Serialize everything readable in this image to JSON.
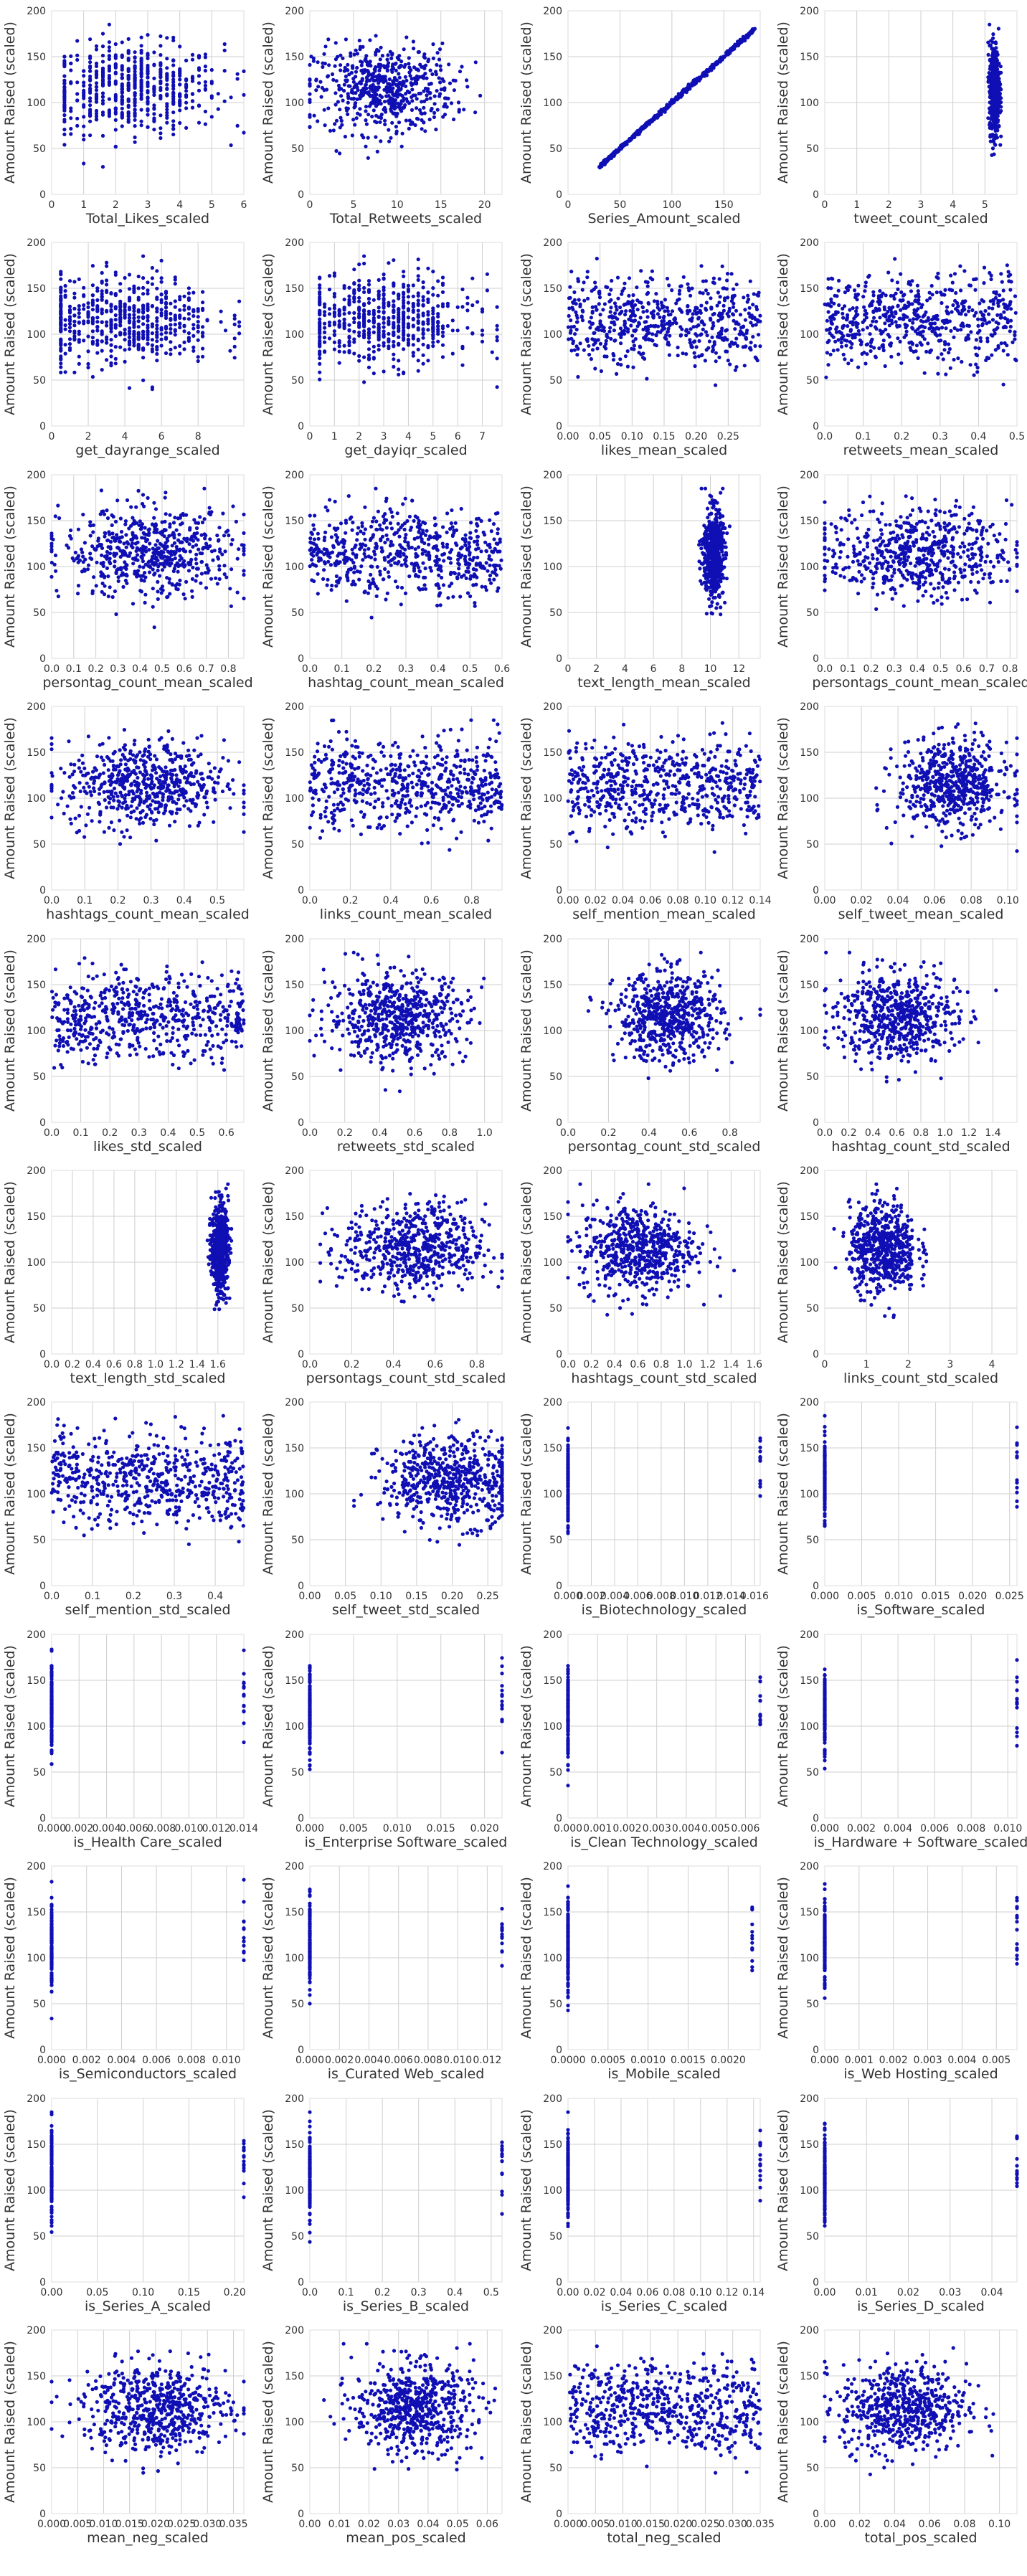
{
  "figure": {
    "colors": {
      "point": "#0f0fb4",
      "grid": "#cfcfcf",
      "axis_text": "#333333",
      "spine": "#dddddd"
    },
    "ylabel": "Amount Raised (scaled)",
    "y_ticks": [
      0,
      50,
      100,
      150,
      200
    ]
  },
  "chart_data": [
    {
      "type": "scatter",
      "xlabel": "Total_Likes_scaled",
      "xlim": [
        0,
        6
      ],
      "x_ticks": [
        0,
        1,
        2,
        3,
        4,
        5,
        6
      ],
      "dist": "discrete",
      "cx": 2.5,
      "sx": 1.4,
      "lo": 0.4,
      "hi": 5.9,
      "step": 0.2,
      "ylim": [
        0,
        200
      ]
    },
    {
      "type": "scatter",
      "xlabel": "Total_Retweets_scaled",
      "xlim": [
        0,
        22
      ],
      "x_ticks": [
        0,
        5,
        10,
        15,
        20
      ],
      "dist": "normal",
      "cx": 8.5,
      "sx": 4,
      "lo": 0,
      "hi": 22,
      "ylim": [
        0,
        200
      ]
    },
    {
      "type": "scatter",
      "xlabel": "Series_Amount_scaled",
      "xlim": [
        0,
        185
      ],
      "x_ticks": [
        0,
        50,
        100,
        150
      ],
      "dist": "diagonal",
      "lo": 30,
      "hi": 180,
      "ylim": [
        0,
        200
      ]
    },
    {
      "type": "scatter",
      "xlabel": "tweet_count_scaled",
      "xlim": [
        0,
        6
      ],
      "x_ticks": [
        0,
        1,
        2,
        3,
        4,
        5
      ],
      "dist": "normal",
      "cx": 5.3,
      "sx": 0.08,
      "lo": 5.1,
      "hi": 5.5,
      "ylim": [
        0,
        200
      ]
    },
    {
      "type": "scatter",
      "xlabel": "get_dayrange_scaled",
      "xlim": [
        0,
        10.5
      ],
      "x_ticks": [
        0,
        2,
        4,
        6,
        8
      ],
      "dist": "discrete",
      "cx": 4,
      "sx": 2.5,
      "lo": 0.5,
      "hi": 10.3,
      "step": 0.25,
      "ylim": [
        0,
        200
      ]
    },
    {
      "type": "scatter",
      "xlabel": "get_dayiqr_scaled",
      "xlim": [
        0,
        7.8
      ],
      "x_ticks": [
        0,
        1,
        2,
        3,
        4,
        5,
        6,
        7
      ],
      "dist": "discrete",
      "cx": 3,
      "sx": 1.8,
      "lo": 0.4,
      "hi": 7.6,
      "step": 0.2,
      "ylim": [
        0,
        200
      ]
    },
    {
      "type": "scatter",
      "xlabel": "likes_mean_scaled",
      "xlim": [
        0,
        0.3
      ],
      "x_ticks": [
        0,
        0.05,
        0.1,
        0.15,
        0.2,
        0.25
      ],
      "dist": "uniform",
      "lo": 0,
      "hi": 0.3,
      "ylim": [
        0,
        200
      ]
    },
    {
      "type": "scatter",
      "xlabel": "retweets_mean_scaled",
      "xlim": [
        0,
        0.5
      ],
      "x_ticks": [
        0,
        0.1,
        0.2,
        0.3,
        0.4,
        0.5
      ],
      "dist": "uniform",
      "lo": 0,
      "hi": 0.5,
      "ylim": [
        0,
        200
      ]
    },
    {
      "type": "scatter",
      "xlabel": "persontag_count_mean_scaled",
      "xlim": [
        0,
        0.87
      ],
      "x_ticks": [
        0,
        0.1,
        0.2,
        0.3,
        0.4,
        0.5,
        0.6,
        0.7,
        0.8
      ],
      "dist": "normal",
      "cx": 0.45,
      "sx": 0.2,
      "lo": 0,
      "hi": 0.87,
      "ylim": [
        0,
        200
      ]
    },
    {
      "type": "scatter",
      "xlabel": "hashtag_count_mean_scaled",
      "xlim": [
        0,
        0.6
      ],
      "x_ticks": [
        0,
        0.1,
        0.2,
        0.3,
        0.4,
        0.5,
        0.6
      ],
      "dist": "uniform",
      "lo": 0,
      "hi": 0.6,
      "ylim": [
        0,
        200
      ]
    },
    {
      "type": "scatter",
      "xlabel": "text_length_mean_scaled",
      "xlim": [
        0,
        13.5
      ],
      "x_ticks": [
        0,
        2,
        4,
        6,
        8,
        10,
        12
      ],
      "dist": "normal",
      "cx": 10.2,
      "sx": 0.35,
      "lo": 9.2,
      "hi": 13,
      "ylim": [
        0,
        200
      ]
    },
    {
      "type": "scatter",
      "xlabel": "persontags_count_mean_scaled",
      "xlim": [
        0,
        0.83
      ],
      "x_ticks": [
        0,
        0.1,
        0.2,
        0.3,
        0.4,
        0.5,
        0.6,
        0.7,
        0.8
      ],
      "dist": "normal",
      "cx": 0.4,
      "sx": 0.2,
      "lo": 0,
      "hi": 0.83,
      "ylim": [
        0,
        200
      ]
    },
    {
      "type": "scatter",
      "xlabel": "hashtags_count_mean_scaled",
      "xlim": [
        0,
        0.58
      ],
      "x_ticks": [
        0,
        0.1,
        0.2,
        0.3,
        0.4,
        0.5
      ],
      "dist": "normal",
      "cx": 0.28,
      "sx": 0.12,
      "lo": 0,
      "hi": 0.58,
      "ylim": [
        0,
        200
      ]
    },
    {
      "type": "scatter",
      "xlabel": "links_count_mean_scaled",
      "xlim": [
        0,
        0.95
      ],
      "x_ticks": [
        0,
        0.2,
        0.4,
        0.6,
        0.8
      ],
      "dist": "uniform",
      "lo": 0,
      "hi": 0.95,
      "ylim": [
        0,
        200
      ]
    },
    {
      "type": "scatter",
      "xlabel": "self_mention_mean_scaled",
      "xlim": [
        0,
        0.14
      ],
      "x_ticks": [
        0,
        0.02,
        0.04,
        0.06,
        0.08,
        0.1,
        0.12,
        0.14
      ],
      "dist": "uniform",
      "lo": 0,
      "hi": 0.14,
      "ylim": [
        0,
        200
      ]
    },
    {
      "type": "scatter",
      "xlabel": "self_tweet_mean_scaled",
      "xlim": [
        0,
        0.105
      ],
      "x_ticks": [
        0,
        0.02,
        0.04,
        0.06,
        0.08,
        0.1
      ],
      "dist": "normal",
      "cx": 0.07,
      "sx": 0.015,
      "lo": 0,
      "hi": 0.105,
      "ylim": [
        0,
        200
      ]
    },
    {
      "type": "scatter",
      "xlabel": "likes_std_scaled",
      "xlim": [
        0,
        0.66
      ],
      "x_ticks": [
        0,
        0.1,
        0.2,
        0.3,
        0.4,
        0.5,
        0.6
      ],
      "dist": "uniform",
      "lo": 0,
      "hi": 0.66,
      "ylim": [
        0,
        200
      ]
    },
    {
      "type": "scatter",
      "xlabel": "retweets_std_scaled",
      "xlim": [
        0,
        1.1
      ],
      "x_ticks": [
        0,
        0.2,
        0.4,
        0.6,
        0.8,
        1.0
      ],
      "dist": "normal",
      "cx": 0.5,
      "sx": 0.2,
      "lo": 0,
      "hi": 1.1,
      "ylim": [
        0,
        200
      ]
    },
    {
      "type": "scatter",
      "xlabel": "persontag_count_std_scaled",
      "xlim": [
        0,
        0.95
      ],
      "x_ticks": [
        0,
        0.2,
        0.4,
        0.6,
        0.8
      ],
      "dist": "normal",
      "cx": 0.5,
      "sx": 0.13,
      "lo": 0.1,
      "hi": 0.95,
      "ylim": [
        0,
        200
      ]
    },
    {
      "type": "scatter",
      "xlabel": "hashtag_count_std_scaled",
      "xlim": [
        0,
        1.6
      ],
      "x_ticks": [
        0,
        0.2,
        0.4,
        0.6,
        0.8,
        1.0,
        1.2,
        1.4
      ],
      "dist": "normal",
      "cx": 0.6,
      "sx": 0.25,
      "lo": 0,
      "hi": 1.6,
      "ylim": [
        0,
        200
      ]
    },
    {
      "type": "scatter",
      "xlabel": "text_length_std_scaled",
      "xlim": [
        0,
        1.85
      ],
      "x_ticks": [
        0,
        0.2,
        0.4,
        0.6,
        0.8,
        1.0,
        1.2,
        1.4,
        1.6
      ],
      "dist": "normal",
      "cx": 1.62,
      "sx": 0.04,
      "lo": 1.5,
      "hi": 1.75,
      "ylim": [
        0,
        200
      ]
    },
    {
      "type": "scatter",
      "xlabel": "persontags_count_std_scaled",
      "xlim": [
        0,
        0.92
      ],
      "x_ticks": [
        0,
        0.2,
        0.4,
        0.6,
        0.8
      ],
      "dist": "normal",
      "cx": 0.5,
      "sx": 0.17,
      "lo": 0.05,
      "hi": 0.92,
      "ylim": [
        0,
        200
      ]
    },
    {
      "type": "scatter",
      "xlabel": "hashtags_count_std_scaled",
      "xlim": [
        0,
        1.65
      ],
      "x_ticks": [
        0,
        0.2,
        0.4,
        0.6,
        0.8,
        1.0,
        1.2,
        1.4,
        1.6
      ],
      "dist": "normal",
      "cx": 0.6,
      "sx": 0.25,
      "lo": 0,
      "hi": 1.65,
      "ylim": [
        0,
        200
      ]
    },
    {
      "type": "scatter",
      "xlabel": "links_count_std_scaled",
      "xlim": [
        0,
        4.6
      ],
      "x_ticks": [
        0,
        1,
        2,
        3,
        4
      ],
      "dist": "normal",
      "cx": 1.4,
      "sx": 0.4,
      "lo": 0.2,
      "hi": 4.6,
      "ylim": [
        0,
        200
      ]
    },
    {
      "type": "scatter",
      "xlabel": "self_mention_std_scaled",
      "xlim": [
        0,
        0.47
      ],
      "x_ticks": [
        0,
        0.1,
        0.2,
        0.3,
        0.4
      ],
      "dist": "uniform",
      "lo": 0,
      "hi": 0.47,
      "ylim": [
        0,
        200
      ]
    },
    {
      "type": "scatter",
      "xlabel": "self_tweet_std_scaled",
      "xlim": [
        0,
        0.27
      ],
      "x_ticks": [
        0,
        0.05,
        0.1,
        0.15,
        0.2,
        0.25
      ],
      "dist": "normal",
      "cx": 0.2,
      "sx": 0.05,
      "lo": 0,
      "hi": 0.27,
      "ylim": [
        0,
        200
      ]
    },
    {
      "type": "scatter",
      "xlabel": "is_Biotechnology_scaled",
      "xlim": [
        0,
        0.0165
      ],
      "x_ticks": [
        0,
        0.002,
        0.004,
        0.006,
        0.008,
        0.01,
        0.012,
        0.014,
        0.016
      ],
      "dist": "binary",
      "v1": 0.0165,
      "ylim": [
        0,
        200
      ]
    },
    {
      "type": "scatter",
      "xlabel": "is_Software_scaled",
      "xlim": [
        0,
        0.026
      ],
      "x_ticks": [
        0,
        0.005,
        0.01,
        0.015,
        0.02,
        0.025
      ],
      "dist": "binary",
      "v1": 0.026,
      "ylim": [
        0,
        200
      ]
    },
    {
      "type": "scatter",
      "xlabel": "is_Health Care_scaled",
      "xlim": [
        0,
        0.014
      ],
      "x_ticks": [
        0,
        0.002,
        0.004,
        0.006,
        0.008,
        0.01,
        0.012,
        0.014
      ],
      "dist": "binary",
      "v1": 0.014,
      "ylim": [
        0,
        200
      ]
    },
    {
      "type": "scatter",
      "xlabel": "is_Enterprise Software_scaled",
      "xlim": [
        0,
        0.022
      ],
      "x_ticks": [
        0,
        0.005,
        0.01,
        0.015,
        0.02
      ],
      "dist": "binary",
      "v1": 0.022,
      "ylim": [
        0,
        200
      ]
    },
    {
      "type": "scatter",
      "xlabel": "is_Clean Technology_scaled",
      "xlim": [
        0,
        0.0065
      ],
      "x_ticks": [
        0,
        0.001,
        0.002,
        0.003,
        0.004,
        0.005,
        0.006
      ],
      "dist": "binary",
      "v1": 0.0065,
      "ylim": [
        0,
        200
      ]
    },
    {
      "type": "scatter",
      "xlabel": "is_Hardware + Software_scaled",
      "xlim": [
        0,
        0.0105
      ],
      "x_ticks": [
        0,
        0.002,
        0.004,
        0.006,
        0.008,
        0.01
      ],
      "dist": "binary",
      "v1": 0.0105,
      "ylim": [
        0,
        200
      ]
    },
    {
      "type": "scatter",
      "xlabel": "is_Semiconductors_scaled",
      "xlim": [
        0,
        0.011
      ],
      "x_ticks": [
        0,
        0.002,
        0.004,
        0.006,
        0.008,
        0.01
      ],
      "dist": "binary",
      "v1": 0.011,
      "ylim": [
        0,
        200
      ]
    },
    {
      "type": "scatter",
      "xlabel": "is_Curated Web_scaled",
      "xlim": [
        0,
        0.013
      ],
      "x_ticks": [
        0,
        0.002,
        0.004,
        0.006,
        0.008,
        0.01,
        0.012
      ],
      "dist": "binary",
      "v1": 0.013,
      "ylim": [
        0,
        200
      ]
    },
    {
      "type": "scatter",
      "xlabel": "is_Mobile_scaled",
      "xlim": [
        0,
        0.0024
      ],
      "x_ticks": [
        0,
        0.0005,
        0.001,
        0.0015,
        0.002
      ],
      "dist": "binary",
      "v1": 0.0023,
      "ylim": [
        0,
        200
      ]
    },
    {
      "type": "scatter",
      "xlabel": "is_Web Hosting_scaled",
      "xlim": [
        0,
        0.0056
      ],
      "x_ticks": [
        0,
        0.001,
        0.002,
        0.003,
        0.004,
        0.005
      ],
      "dist": "binary",
      "v1": 0.0056,
      "ylim": [
        0,
        200
      ]
    },
    {
      "type": "scatter",
      "xlabel": "is_Series_A_scaled",
      "xlim": [
        0,
        0.21
      ],
      "x_ticks": [
        0,
        0.05,
        0.1,
        0.15,
        0.2
      ],
      "dist": "binary",
      "v1": 0.21,
      "ylim": [
        0,
        200
      ]
    },
    {
      "type": "scatter",
      "xlabel": "is_Series_B_scaled",
      "xlim": [
        0,
        0.53
      ],
      "x_ticks": [
        0,
        0.1,
        0.2,
        0.3,
        0.4,
        0.5
      ],
      "dist": "binary",
      "v1": 0.53,
      "ylim": [
        0,
        200
      ]
    },
    {
      "type": "scatter",
      "xlabel": "is_Series_C_scaled",
      "xlim": [
        0,
        0.145
      ],
      "x_ticks": [
        0,
        0.02,
        0.04,
        0.06,
        0.08,
        0.1,
        0.12,
        0.14
      ],
      "dist": "binary",
      "v1": 0.145,
      "ylim": [
        0,
        200
      ]
    },
    {
      "type": "scatter",
      "xlabel": "is_Series_D_scaled",
      "xlim": [
        0,
        0.046
      ],
      "x_ticks": [
        0,
        0.01,
        0.02,
        0.03,
        0.04
      ],
      "dist": "binary",
      "v1": 0.046,
      "ylim": [
        0,
        200
      ]
    },
    {
      "type": "scatter",
      "xlabel": "mean_neg_scaled",
      "xlim": [
        0,
        0.037
      ],
      "x_ticks": [
        0,
        0.005,
        0.01,
        0.015,
        0.02,
        0.025,
        0.03,
        0.035
      ],
      "dist": "normal",
      "cx": 0.02,
      "sx": 0.007,
      "lo": 0,
      "hi": 0.037,
      "ylim": [
        0,
        200
      ]
    },
    {
      "type": "scatter",
      "xlabel": "mean_pos_scaled",
      "xlim": [
        0,
        0.065
      ],
      "x_ticks": [
        0,
        0.01,
        0.02,
        0.03,
        0.04,
        0.05,
        0.06
      ],
      "dist": "normal",
      "cx": 0.035,
      "sx": 0.01,
      "lo": 0,
      "hi": 0.065,
      "ylim": [
        0,
        200
      ]
    },
    {
      "type": "scatter",
      "xlabel": "total_neg_scaled",
      "xlim": [
        0,
        0.035
      ],
      "x_ticks": [
        0,
        0.005,
        0.01,
        0.015,
        0.02,
        0.025,
        0.03,
        0.035
      ],
      "dist": "uniform",
      "lo": 0,
      "hi": 0.035,
      "ylim": [
        0,
        200
      ]
    },
    {
      "type": "scatter",
      "xlabel": "total_pos_scaled",
      "xlim": [
        0,
        0.11
      ],
      "x_ticks": [
        0,
        0.02,
        0.04,
        0.06,
        0.08,
        0.1
      ],
      "dist": "normal",
      "cx": 0.045,
      "sx": 0.018,
      "lo": 0,
      "hi": 0.11,
      "ylim": [
        0,
        200
      ]
    }
  ]
}
